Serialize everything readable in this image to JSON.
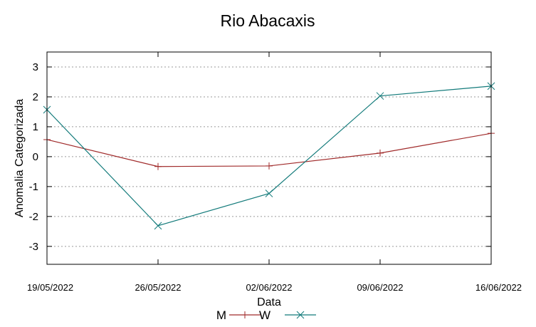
{
  "chart_data": {
    "type": "line",
    "title": "Rio Abacaxis",
    "xlabel": "Data",
    "ylabel": "Anomalia Categorizada",
    "categories": [
      "19/05/2022",
      "26/05/2022",
      "02/06/2022",
      "09/06/2022",
      "16/06/2022"
    ],
    "ylim": [
      -3.6,
      3.5
    ],
    "yticks": [
      "3",
      "2",
      "1",
      "0",
      "-1",
      "-2",
      "-3"
    ],
    "grid": "horizontal dotted",
    "legend_position": "bottom",
    "series": [
      {
        "name": "M",
        "color": "#a02a2a",
        "marker": "plus",
        "values": [
          0.57,
          -0.33,
          -0.31,
          0.12,
          0.78
        ]
      },
      {
        "name": "W",
        "color": "#127a7a",
        "marker": "cross",
        "values": [
          1.57,
          -2.31,
          -1.23,
          2.03,
          2.36
        ]
      }
    ]
  }
}
